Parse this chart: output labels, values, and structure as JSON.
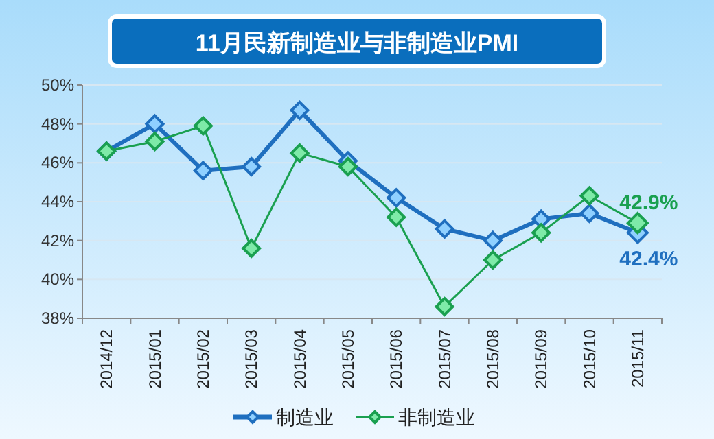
{
  "chart_data": {
    "type": "line",
    "title": "11月民新制造业与非制造业PMI",
    "categories": [
      "2014/12",
      "2015/01",
      "2015/02",
      "2015/03",
      "2015/04",
      "2015/05",
      "2015/06",
      "2015/07",
      "2015/08",
      "2015/09",
      "2015/10",
      "2015/11"
    ],
    "series": [
      {
        "name": "制造业",
        "color": "#1f6fbf",
        "values": [
          46.6,
          48.0,
          45.6,
          45.8,
          48.7,
          46.1,
          44.2,
          42.6,
          42.0,
          43.1,
          43.4,
          42.4
        ],
        "value_labels": [
          null,
          null,
          null,
          null,
          null,
          null,
          null,
          null,
          null,
          null,
          null,
          "42.4%"
        ]
      },
      {
        "name": "非制造业",
        "color": "#1aa050",
        "values": [
          46.6,
          47.1,
          47.9,
          41.6,
          46.5,
          45.8,
          43.2,
          38.6,
          41.0,
          42.4,
          44.3,
          42.9
        ],
        "value_labels": [
          null,
          null,
          null,
          null,
          null,
          null,
          null,
          null,
          null,
          null,
          null,
          "42.9%"
        ]
      }
    ],
    "ylim": [
      38,
      50
    ],
    "yticks": [
      {
        "value": 38,
        "label": "38%"
      },
      {
        "value": 40,
        "label": "40%"
      },
      {
        "value": 42,
        "label": "42%"
      },
      {
        "value": 44,
        "label": "44%"
      },
      {
        "value": 46,
        "label": "46%"
      },
      {
        "value": 48,
        "label": "48%"
      },
      {
        "value": 50,
        "label": "50%"
      }
    ],
    "grid": "y",
    "legend": "bottom",
    "marker": "diamond",
    "line_style": "solid"
  }
}
